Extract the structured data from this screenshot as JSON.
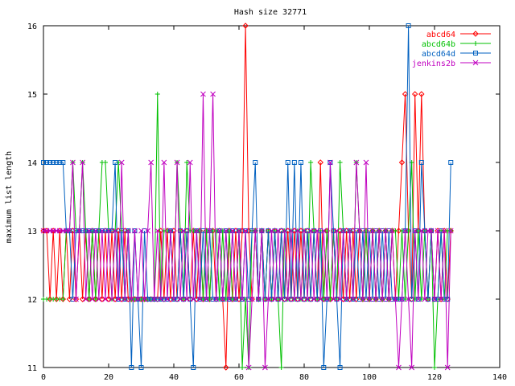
{
  "chart_data": {
    "type": "line",
    "title": "Hash size 32771",
    "xlabel": "",
    "ylabel": "maximum list length",
    "xlim": [
      0,
      140
    ],
    "ylim": [
      11,
      16
    ],
    "x_ticks": [
      0,
      20,
      40,
      60,
      80,
      100,
      120,
      140
    ],
    "y_ticks": [
      11,
      12,
      13,
      14,
      15,
      16
    ],
    "grid": false,
    "legend_position": "top-right",
    "x": [
      0,
      1,
      2,
      3,
      4,
      5,
      6,
      7,
      8,
      9,
      10,
      11,
      12,
      13,
      14,
      15,
      16,
      17,
      18,
      19,
      20,
      21,
      22,
      23,
      24,
      25,
      26,
      27,
      28,
      29,
      30,
      31,
      32,
      33,
      34,
      35,
      36,
      37,
      38,
      39,
      40,
      41,
      42,
      43,
      44,
      45,
      46,
      47,
      48,
      49,
      50,
      51,
      52,
      53,
      54,
      55,
      56,
      57,
      58,
      59,
      60,
      61,
      62,
      63,
      64,
      65,
      66,
      67,
      68,
      69,
      70,
      71,
      72,
      73,
      74,
      75,
      76,
      77,
      78,
      79,
      80,
      81,
      82,
      83,
      84,
      85,
      86,
      87,
      88,
      89,
      90,
      91,
      92,
      93,
      94,
      95,
      96,
      97,
      98,
      99,
      100,
      101,
      102,
      103,
      104,
      105,
      106,
      107,
      108,
      109,
      110,
      111,
      112,
      113,
      114,
      115,
      116,
      117,
      118,
      119,
      120,
      121,
      122,
      123,
      124,
      125
    ],
    "series": [
      {
        "name": "abcd64",
        "color": "#ff0000",
        "marker": "diamond",
        "values": [
          13,
          13,
          12,
          13,
          12,
          13,
          12,
          13,
          12,
          13,
          12,
          13,
          12,
          13,
          12,
          13,
          12,
          13,
          12,
          13,
          12,
          13,
          12,
          13,
          12,
          13,
          12,
          12,
          12,
          12,
          12,
          12,
          12,
          12,
          12,
          12,
          13,
          12,
          13,
          12,
          13,
          12,
          13,
          12,
          13,
          12,
          13,
          12,
          13,
          12,
          13,
          12,
          13,
          12,
          13,
          12,
          11,
          13,
          12,
          13,
          12,
          13,
          16,
          13,
          12,
          13,
          12,
          13,
          12,
          13,
          12,
          13,
          12,
          13,
          12,
          13,
          12,
          13,
          12,
          13,
          12,
          13,
          12,
          13,
          12,
          14,
          12,
          13,
          12,
          13,
          12,
          13,
          12,
          13,
          12,
          13,
          12,
          13,
          12,
          13,
          12,
          13,
          12,
          13,
          12,
          13,
          12,
          13,
          12,
          13,
          14,
          15,
          13,
          12,
          15,
          13,
          15,
          13,
          12,
          13,
          12,
          13,
          12,
          13,
          12,
          13
        ]
      },
      {
        "name": "abcd64b",
        "color": "#00c000",
        "marker": "plus",
        "values": [
          12,
          12,
          12,
          12,
          12,
          12,
          12,
          13,
          13,
          14,
          13,
          13,
          14,
          13,
          12,
          13,
          12,
          13,
          14,
          14,
          13,
          12,
          13,
          14,
          13,
          12,
          13,
          12,
          12,
          12,
          12,
          12,
          12,
          12,
          12,
          15,
          12,
          13,
          13,
          13,
          12,
          14,
          13,
          12,
          14,
          13,
          13,
          13,
          13,
          12,
          13,
          12,
          13,
          13,
          12,
          13,
          12,
          13,
          12,
          12,
          13,
          11,
          12,
          11,
          13,
          13,
          12,
          13,
          12,
          13,
          12,
          13,
          12,
          11,
          13,
          12,
          13,
          12,
          13,
          12,
          13,
          12,
          14,
          13,
          12,
          13,
          12,
          13,
          12,
          13,
          12,
          14,
          13,
          12,
          13,
          12,
          14,
          13,
          12,
          13,
          12,
          13,
          12,
          13,
          12,
          13,
          12,
          13,
          13,
          12,
          13,
          12,
          13,
          14,
          12,
          13,
          12,
          13,
          12,
          13,
          11,
          12,
          13,
          12,
          13,
          13
        ]
      },
      {
        "name": "abcd64d",
        "color": "#0060c0",
        "marker": "square",
        "values": [
          14,
          14,
          14,
          14,
          14,
          14,
          14,
          13,
          13,
          12,
          13,
          13,
          13,
          13,
          13,
          13,
          13,
          13,
          13,
          13,
          13,
          13,
          14,
          12,
          13,
          12,
          13,
          11,
          13,
          12,
          11,
          13,
          12,
          12,
          12,
          12,
          12,
          12,
          12,
          13,
          12,
          12,
          13,
          12,
          13,
          12,
          11,
          13,
          12,
          13,
          12,
          13,
          12,
          12,
          13,
          12,
          13,
          12,
          13,
          12,
          13,
          12,
          13,
          12,
          13,
          14,
          12,
          13,
          12,
          13,
          12,
          13,
          12,
          13,
          12,
          14,
          12,
          14,
          12,
          14,
          12,
          13,
          12,
          13,
          12,
          13,
          11,
          12,
          14,
          13,
          12,
          11,
          13,
          12,
          13,
          12,
          13,
          12,
          13,
          12,
          13,
          12,
          13,
          12,
          13,
          12,
          13,
          12,
          12,
          12,
          12,
          13,
          16,
          12,
          13,
          12,
          14,
          13,
          12,
          13,
          12,
          12,
          13,
          12,
          12,
          14
        ]
      },
      {
        "name": "jenkins2b",
        "color": "#c000c0",
        "marker": "x",
        "values": [
          13,
          13,
          13,
          13,
          13,
          13,
          13,
          13,
          13,
          14,
          12,
          13,
          14,
          12,
          13,
          12,
          13,
          12,
          13,
          12,
          13,
          12,
          13,
          12,
          14,
          12,
          13,
          12,
          13,
          12,
          13,
          12,
          13,
          14,
          12,
          13,
          12,
          14,
          12,
          13,
          12,
          14,
          12,
          13,
          12,
          14,
          12,
          13,
          12,
          15,
          12,
          13,
          15,
          12,
          13,
          12,
          13,
          12,
          13,
          12,
          13,
          12,
          13,
          11,
          12,
          13,
          12,
          13,
          11,
          12,
          13,
          12,
          13,
          12,
          13,
          12,
          13,
          12,
          13,
          12,
          13,
          12,
          13,
          12,
          13,
          12,
          13,
          12,
          14,
          12,
          13,
          12,
          13,
          12,
          13,
          12,
          14,
          13,
          12,
          14,
          12,
          13,
          12,
          13,
          12,
          13,
          12,
          13,
          12,
          11,
          12,
          13,
          12,
          11,
          13,
          12,
          13,
          12,
          13,
          13,
          12,
          13,
          12,
          13,
          11,
          13
        ]
      }
    ]
  }
}
